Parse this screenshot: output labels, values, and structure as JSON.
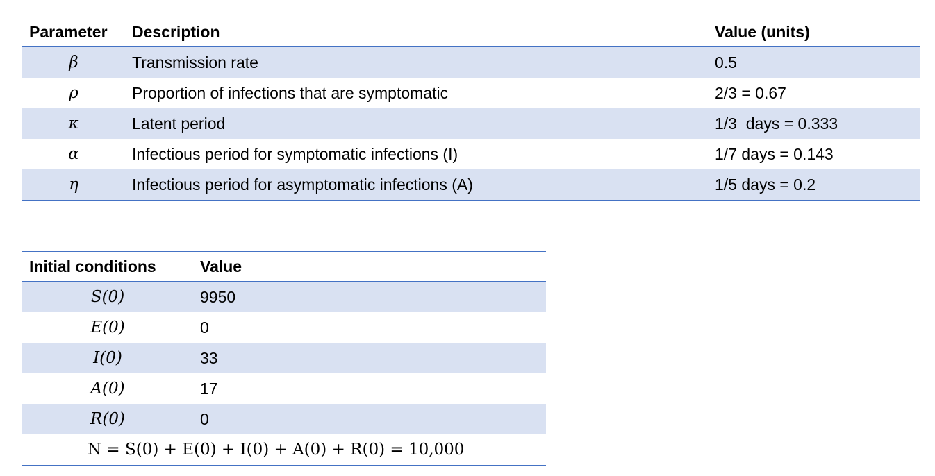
{
  "parameters_table": {
    "headers": [
      "Parameter",
      "Description",
      "Value (units)"
    ],
    "rows": [
      {
        "symbol": "β",
        "description": "Transmission rate",
        "value": "0.5"
      },
      {
        "symbol": "ρ",
        "description": "Proportion of infections that are symptomatic",
        "value": "2/3 = 0.67"
      },
      {
        "symbol": "κ",
        "description": "Latent period",
        "value": "1/3  days = 0.333"
      },
      {
        "symbol": "α",
        "description": "Infectious period for symptomatic infections (I)",
        "value": "1/7 days = 0.143"
      },
      {
        "symbol": "η",
        "description": "Infectious period for asymptomatic infections (A)",
        "value": "1/5 days = 0.2"
      }
    ]
  },
  "initial_conditions_table": {
    "headers": [
      "Initial conditions",
      "Value"
    ],
    "rows": [
      {
        "symbol": "S(0)",
        "value": "9950"
      },
      {
        "symbol": "E(0)",
        "value": "0"
      },
      {
        "symbol": "I(0)",
        "value": "33"
      },
      {
        "symbol": "A(0)",
        "value": "17"
      },
      {
        "symbol": "R(0)",
        "value": "0"
      }
    ],
    "total_formula": "N = S(0) + E(0) + I(0) + A(0) + R(0) = 10,000"
  },
  "colors": {
    "row_shade": "#D9E1F2",
    "rule_line": "#4472C4"
  }
}
